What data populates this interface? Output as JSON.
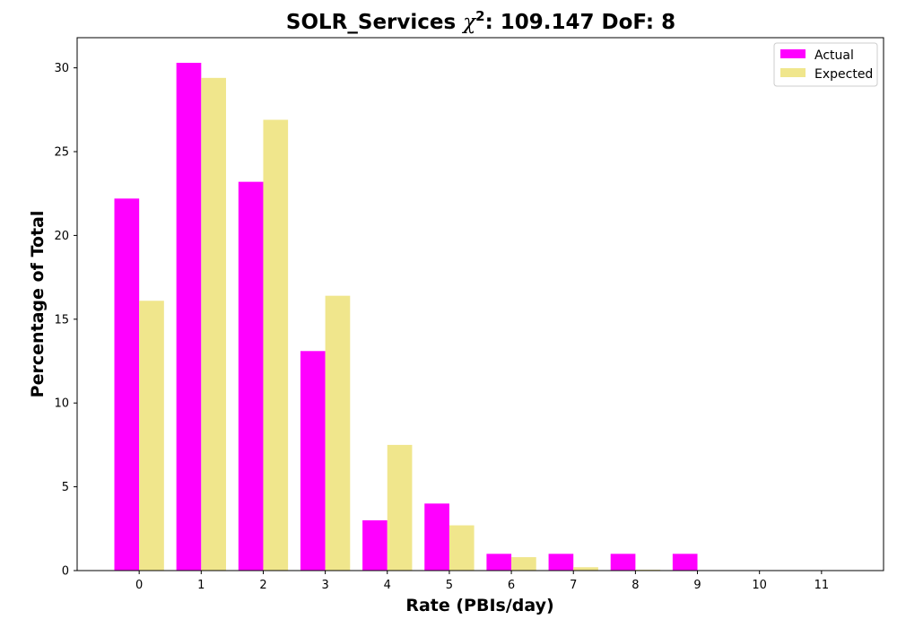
{
  "chart_data": {
    "type": "bar",
    "title_prefix": "SOLR_Services ",
    "title_chi": "χ",
    "title_sup": "2",
    "title_suffix": ": 109.147 DoF: 8",
    "xlabel": "Rate (PBIs/day)",
    "ylabel": "Percentage of Total",
    "categories": [
      "0",
      "1",
      "2",
      "3",
      "4",
      "5",
      "6",
      "7",
      "8",
      "9",
      "10",
      "11"
    ],
    "x_range": [
      -1,
      12
    ],
    "ylim": [
      0,
      31.8
    ],
    "yticks": [
      0,
      5,
      10,
      15,
      20,
      25,
      30
    ],
    "grid": false,
    "legend_position": "top-right",
    "series": [
      {
        "name": "Actual",
        "color": "#ff00ff",
        "values": [
          22.2,
          30.3,
          23.2,
          13.1,
          3.0,
          4.0,
          1.0,
          1.0,
          1.0,
          1.0,
          0,
          0
        ]
      },
      {
        "name": "Expected",
        "color": "#f0e68c",
        "values": [
          16.1,
          29.4,
          26.9,
          16.4,
          7.5,
          2.7,
          0.8,
          0.2,
          0.05,
          0.01,
          0,
          0
        ]
      }
    ]
  }
}
